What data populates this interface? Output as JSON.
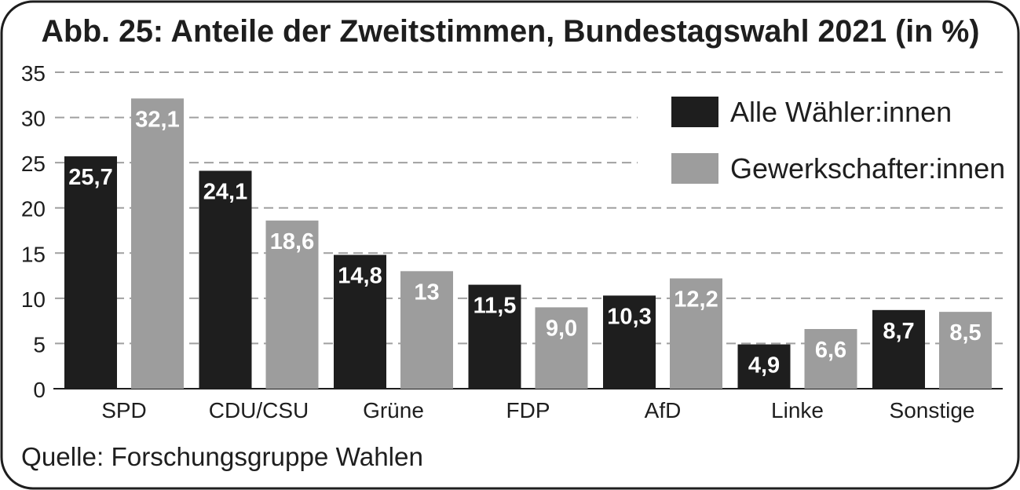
{
  "chart_data": {
    "type": "bar",
    "title": "Abb. 25: Anteile der Zweitstimmen, Bundestagswahl 2021 (in %)",
    "source": "Quelle: Forschungsgruppe Wahlen",
    "categories": [
      "SPD",
      "CDU/CSU",
      "Grüne",
      "FDP",
      "AfD",
      "Linke",
      "Sonstige"
    ],
    "series": [
      {
        "name": "Alle Wähler:innen",
        "color": "#1e1e1e",
        "values": [
          25.7,
          24.1,
          14.8,
          11.5,
          10.3,
          4.9,
          8.7
        ],
        "labels": [
          "25,7",
          "24,1",
          "14,8",
          "11,5",
          "10,3",
          "4,9",
          "8,7"
        ]
      },
      {
        "name": "Gewerkschafter:innen",
        "color": "#9d9d9d",
        "values": [
          32.1,
          18.6,
          13,
          9.0,
          12.2,
          6.6,
          8.5
        ],
        "labels": [
          "32,1",
          "18,6",
          "13",
          "9,0",
          "12,2",
          "6,6",
          "8,5"
        ]
      }
    ],
    "yticks": [
      0,
      5,
      10,
      15,
      20,
      25,
      30,
      35
    ],
    "ylim": [
      0,
      35
    ],
    "grid": true,
    "legend": "top-right"
  }
}
